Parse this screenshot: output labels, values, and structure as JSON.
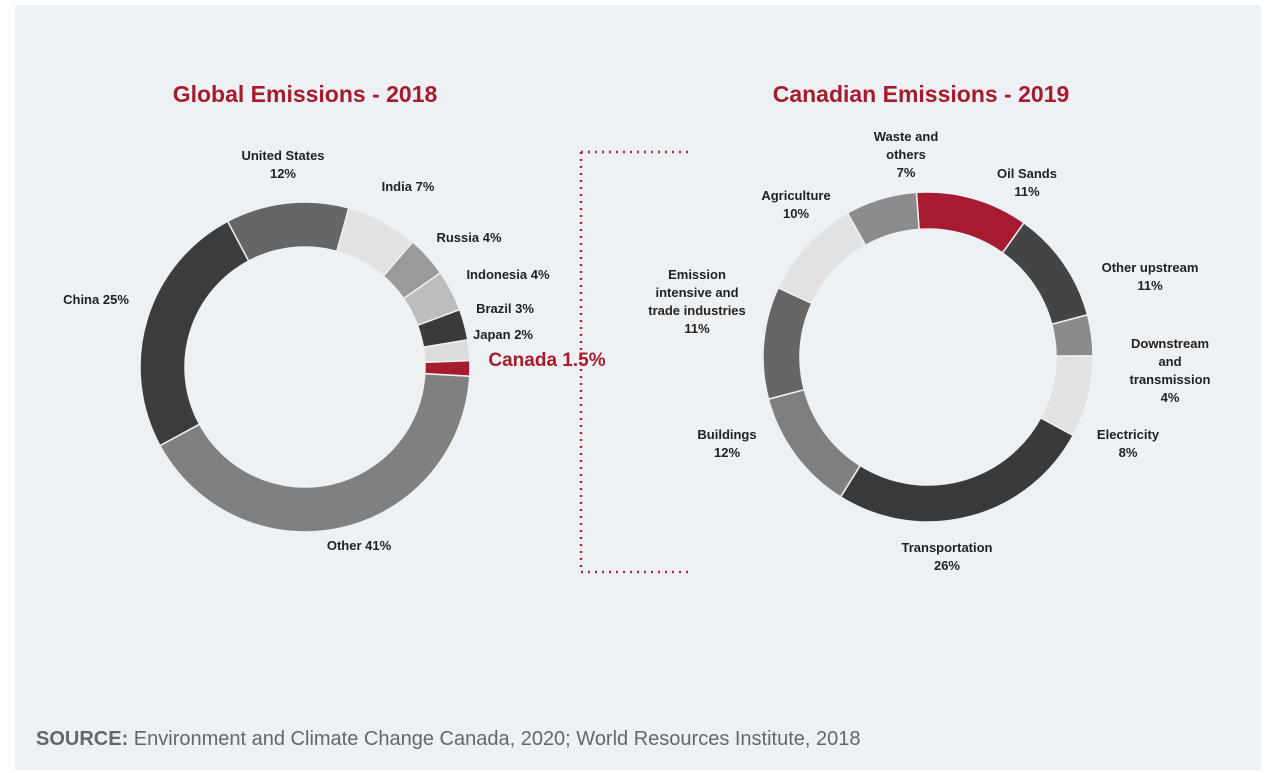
{
  "chart_data": [
    {
      "type": "pie",
      "title": "Global Emissions - 2018",
      "categories": [
        "United States",
        "India",
        "Russia",
        "Indonesia",
        "Brazil",
        "Japan",
        "Canada",
        "Other",
        "China"
      ],
      "values": [
        12,
        7,
        4,
        4,
        3,
        2,
        1.5,
        41,
        25
      ],
      "value_labels": [
        "12%",
        "7%",
        "4%",
        "4%",
        "3%",
        "2%",
        "1.5%",
        "41%",
        "25%"
      ],
      "colors": [
        "#666666",
        "#e2e2e2",
        "#9a9a9a",
        "#bdbdbd",
        "#3a3a3a",
        "#dcdcdc",
        "#a51c30",
        "#808080",
        "#3c3c3c"
      ]
    },
    {
      "type": "pie",
      "title": "Canadian Emissions - 2019",
      "categories": [
        "Oil Sands",
        "Other upstream",
        "Downstream and\ntransmission",
        "Electricity",
        "Transportation",
        "Buildings",
        "Emission\nintensive and\ntrade industries",
        "Agriculture",
        "Waste and\nothers"
      ],
      "values": [
        11,
        11,
        4,
        8,
        26,
        12,
        11,
        10,
        7
      ],
      "value_labels": [
        "11%",
        "11%",
        "4%",
        "8%",
        "26%",
        "12%",
        "11%",
        "10%",
        "7%"
      ],
      "colors": [
        "#a51c30",
        "#444444",
        "#8a8a8a",
        "#e2e2e2",
        "#3a3a3a",
        "#7f7f7f",
        "#666666",
        "#e2e2e2",
        "#8c8c8c"
      ]
    }
  ],
  "source": {
    "label": "SOURCE:",
    "text": "Environment and Climate Change Canada, 2020; World Resources Institute, 2018"
  }
}
